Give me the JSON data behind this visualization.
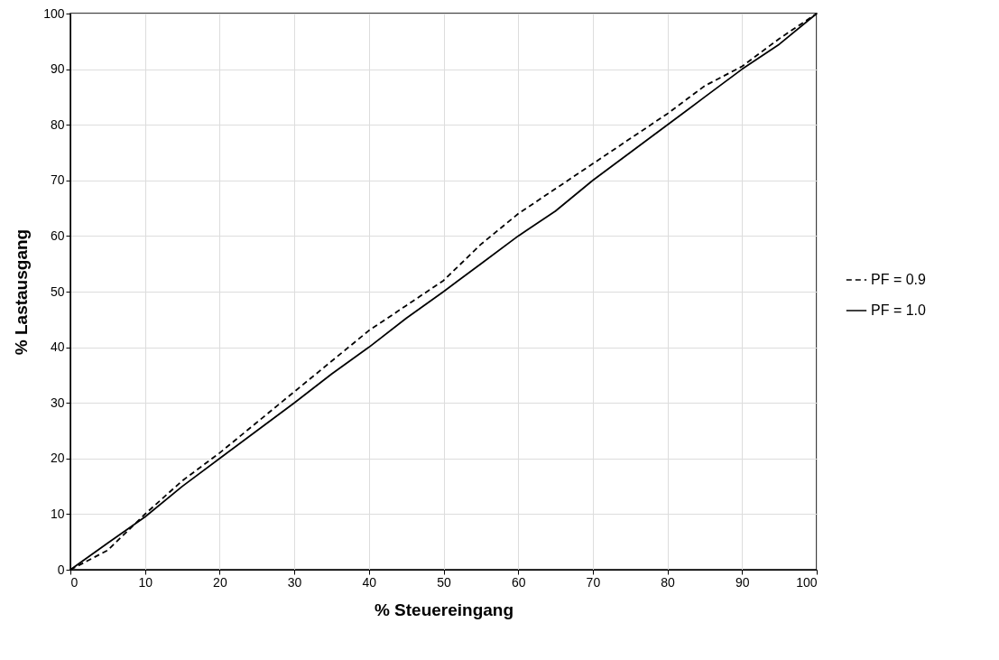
{
  "chart_data": {
    "type": "line",
    "xlabel": "% Steuereingang",
    "ylabel": "% Lastausgang",
    "x": [
      0,
      5,
      10,
      15,
      20,
      25,
      30,
      35,
      40,
      45,
      50,
      55,
      60,
      65,
      70,
      75,
      80,
      85,
      90,
      95,
      100
    ],
    "series": [
      {
        "name": "PF = 0.9",
        "color": "#000000",
        "line_style": "dashed",
        "values": [
          0,
          3.5,
          10,
          16,
          21,
          26.5,
          32,
          37.5,
          43,
          47.5,
          52,
          58.5,
          64,
          68.5,
          73,
          77.5,
          82,
          87,
          90.5,
          95.5,
          100
        ]
      },
      {
        "name": "PF = 1.0",
        "color": "#000000",
        "line_style": "solid",
        "values": [
          0,
          4.8,
          9.5,
          15,
          20,
          25,
          30,
          35.2,
          40,
          45.2,
          50,
          55,
          60,
          64.5,
          70,
          75,
          80,
          85,
          90,
          94.5,
          100
        ]
      }
    ],
    "xlim": [
      0,
      100
    ],
    "xticks": [
      0,
      10,
      20,
      30,
      40,
      50,
      60,
      70,
      80,
      90,
      100
    ],
    "ylim": [
      0,
      100
    ],
    "yticks": [
      0,
      10,
      20,
      30,
      40,
      50,
      60,
      70,
      80,
      90,
      100
    ],
    "grid": true,
    "legend": "right",
    "marker": "none"
  }
}
